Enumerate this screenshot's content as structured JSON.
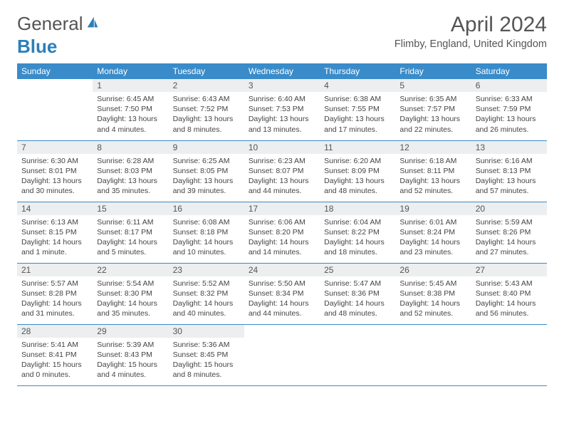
{
  "logo": {
    "text1": "General",
    "text2": "Blue"
  },
  "title": "April 2024",
  "location": "Flimby, England, United Kingdom",
  "weekdays": [
    "Sunday",
    "Monday",
    "Tuesday",
    "Wednesday",
    "Thursday",
    "Friday",
    "Saturday"
  ],
  "colors": {
    "header_bg": "#3a8bc9",
    "header_fg": "#ffffff",
    "daynum_bg": "#eceeef",
    "row_border": "#3a8bc9",
    "logo_blue": "#2c7fb8"
  },
  "weeks": [
    [
      {
        "n": "",
        "sr": "",
        "ss": "",
        "dl": ""
      },
      {
        "n": "1",
        "sr": "Sunrise: 6:45 AM",
        "ss": "Sunset: 7:50 PM",
        "dl": "Daylight: 13 hours and 4 minutes."
      },
      {
        "n": "2",
        "sr": "Sunrise: 6:43 AM",
        "ss": "Sunset: 7:52 PM",
        "dl": "Daylight: 13 hours and 8 minutes."
      },
      {
        "n": "3",
        "sr": "Sunrise: 6:40 AM",
        "ss": "Sunset: 7:53 PM",
        "dl": "Daylight: 13 hours and 13 minutes."
      },
      {
        "n": "4",
        "sr": "Sunrise: 6:38 AM",
        "ss": "Sunset: 7:55 PM",
        "dl": "Daylight: 13 hours and 17 minutes."
      },
      {
        "n": "5",
        "sr": "Sunrise: 6:35 AM",
        "ss": "Sunset: 7:57 PM",
        "dl": "Daylight: 13 hours and 22 minutes."
      },
      {
        "n": "6",
        "sr": "Sunrise: 6:33 AM",
        "ss": "Sunset: 7:59 PM",
        "dl": "Daylight: 13 hours and 26 minutes."
      }
    ],
    [
      {
        "n": "7",
        "sr": "Sunrise: 6:30 AM",
        "ss": "Sunset: 8:01 PM",
        "dl": "Daylight: 13 hours and 30 minutes."
      },
      {
        "n": "8",
        "sr": "Sunrise: 6:28 AM",
        "ss": "Sunset: 8:03 PM",
        "dl": "Daylight: 13 hours and 35 minutes."
      },
      {
        "n": "9",
        "sr": "Sunrise: 6:25 AM",
        "ss": "Sunset: 8:05 PM",
        "dl": "Daylight: 13 hours and 39 minutes."
      },
      {
        "n": "10",
        "sr": "Sunrise: 6:23 AM",
        "ss": "Sunset: 8:07 PM",
        "dl": "Daylight: 13 hours and 44 minutes."
      },
      {
        "n": "11",
        "sr": "Sunrise: 6:20 AM",
        "ss": "Sunset: 8:09 PM",
        "dl": "Daylight: 13 hours and 48 minutes."
      },
      {
        "n": "12",
        "sr": "Sunrise: 6:18 AM",
        "ss": "Sunset: 8:11 PM",
        "dl": "Daylight: 13 hours and 52 minutes."
      },
      {
        "n": "13",
        "sr": "Sunrise: 6:16 AM",
        "ss": "Sunset: 8:13 PM",
        "dl": "Daylight: 13 hours and 57 minutes."
      }
    ],
    [
      {
        "n": "14",
        "sr": "Sunrise: 6:13 AM",
        "ss": "Sunset: 8:15 PM",
        "dl": "Daylight: 14 hours and 1 minute."
      },
      {
        "n": "15",
        "sr": "Sunrise: 6:11 AM",
        "ss": "Sunset: 8:17 PM",
        "dl": "Daylight: 14 hours and 5 minutes."
      },
      {
        "n": "16",
        "sr": "Sunrise: 6:08 AM",
        "ss": "Sunset: 8:18 PM",
        "dl": "Daylight: 14 hours and 10 minutes."
      },
      {
        "n": "17",
        "sr": "Sunrise: 6:06 AM",
        "ss": "Sunset: 8:20 PM",
        "dl": "Daylight: 14 hours and 14 minutes."
      },
      {
        "n": "18",
        "sr": "Sunrise: 6:04 AM",
        "ss": "Sunset: 8:22 PM",
        "dl": "Daylight: 14 hours and 18 minutes."
      },
      {
        "n": "19",
        "sr": "Sunrise: 6:01 AM",
        "ss": "Sunset: 8:24 PM",
        "dl": "Daylight: 14 hours and 23 minutes."
      },
      {
        "n": "20",
        "sr": "Sunrise: 5:59 AM",
        "ss": "Sunset: 8:26 PM",
        "dl": "Daylight: 14 hours and 27 minutes."
      }
    ],
    [
      {
        "n": "21",
        "sr": "Sunrise: 5:57 AM",
        "ss": "Sunset: 8:28 PM",
        "dl": "Daylight: 14 hours and 31 minutes."
      },
      {
        "n": "22",
        "sr": "Sunrise: 5:54 AM",
        "ss": "Sunset: 8:30 PM",
        "dl": "Daylight: 14 hours and 35 minutes."
      },
      {
        "n": "23",
        "sr": "Sunrise: 5:52 AM",
        "ss": "Sunset: 8:32 PM",
        "dl": "Daylight: 14 hours and 40 minutes."
      },
      {
        "n": "24",
        "sr": "Sunrise: 5:50 AM",
        "ss": "Sunset: 8:34 PM",
        "dl": "Daylight: 14 hours and 44 minutes."
      },
      {
        "n": "25",
        "sr": "Sunrise: 5:47 AM",
        "ss": "Sunset: 8:36 PM",
        "dl": "Daylight: 14 hours and 48 minutes."
      },
      {
        "n": "26",
        "sr": "Sunrise: 5:45 AM",
        "ss": "Sunset: 8:38 PM",
        "dl": "Daylight: 14 hours and 52 minutes."
      },
      {
        "n": "27",
        "sr": "Sunrise: 5:43 AM",
        "ss": "Sunset: 8:40 PM",
        "dl": "Daylight: 14 hours and 56 minutes."
      }
    ],
    [
      {
        "n": "28",
        "sr": "Sunrise: 5:41 AM",
        "ss": "Sunset: 8:41 PM",
        "dl": "Daylight: 15 hours and 0 minutes."
      },
      {
        "n": "29",
        "sr": "Sunrise: 5:39 AM",
        "ss": "Sunset: 8:43 PM",
        "dl": "Daylight: 15 hours and 4 minutes."
      },
      {
        "n": "30",
        "sr": "Sunrise: 5:36 AM",
        "ss": "Sunset: 8:45 PM",
        "dl": "Daylight: 15 hours and 8 minutes."
      },
      {
        "n": "",
        "sr": "",
        "ss": "",
        "dl": ""
      },
      {
        "n": "",
        "sr": "",
        "ss": "",
        "dl": ""
      },
      {
        "n": "",
        "sr": "",
        "ss": "",
        "dl": ""
      },
      {
        "n": "",
        "sr": "",
        "ss": "",
        "dl": ""
      }
    ]
  ]
}
